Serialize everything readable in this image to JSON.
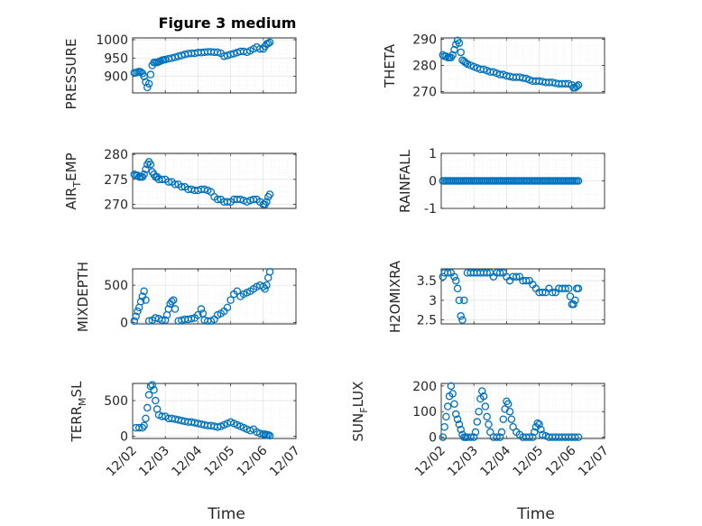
{
  "figure_title": "Figure 3 medium",
  "marker_color": "#0072bd",
  "x_tick_labels": [
    "12/02",
    "12/03",
    "12/04",
    "12/05",
    "12/06",
    "12/07"
  ],
  "chart_data": [
    {
      "type": "scatter",
      "title": "Figure 3 medium",
      "ylabel": "PRESSURE",
      "xlabel": "",
      "x_tick_labels": [
        "12/02",
        "12/03",
        "12/04",
        "12/05",
        "12/06",
        "12/07"
      ],
      "xlim": [
        0,
        5
      ],
      "ylim": [
        855,
        1005
      ],
      "yticks": [
        900,
        950,
        1000
      ],
      "grid": true,
      "x": [
        0.05,
        0.1,
        0.15,
        0.2,
        0.25,
        0.3,
        0.35,
        0.4,
        0.45,
        0.5,
        0.55,
        0.6,
        0.65,
        0.7,
        0.75,
        0.8,
        0.85,
        0.9,
        0.95,
        1.0,
        1.1,
        1.2,
        1.3,
        1.4,
        1.5,
        1.6,
        1.7,
        1.8,
        1.9,
        2.0,
        2.1,
        2.2,
        2.3,
        2.4,
        2.5,
        2.6,
        2.7,
        2.8,
        2.9,
        3.0,
        3.1,
        3.2,
        3.3,
        3.4,
        3.5,
        3.6,
        3.7,
        3.8,
        3.9,
        4.0,
        4.05,
        4.1,
        4.15,
        4.2
      ],
      "values": [
        910,
        910,
        912,
        913,
        912,
        908,
        900,
        885,
        870,
        880,
        905,
        930,
        938,
        938,
        938,
        940,
        942,
        944,
        945,
        946,
        948,
        950,
        952,
        955,
        957,
        960,
        962,
        963,
        963,
        965,
        965,
        966,
        967,
        967,
        966,
        966,
        963,
        955,
        957,
        960,
        962,
        965,
        968,
        968,
        966,
        970,
        975,
        980,
        975,
        975,
        982,
        988,
        990,
        993
      ]
    },
    {
      "type": "scatter",
      "ylabel": "THETA",
      "xlabel": "",
      "x_tick_labels": [
        "12/02",
        "12/03",
        "12/04",
        "12/05",
        "12/06",
        "12/07"
      ],
      "xlim": [
        0,
        5
      ],
      "ylim": [
        269.5,
        290.5
      ],
      "yticks": [
        270,
        280,
        290
      ],
      "grid": true,
      "x": [
        0.05,
        0.1,
        0.15,
        0.2,
        0.25,
        0.3,
        0.35,
        0.4,
        0.45,
        0.5,
        0.55,
        0.6,
        0.65,
        0.7,
        0.75,
        0.8,
        0.9,
        1.0,
        1.1,
        1.2,
        1.3,
        1.4,
        1.5,
        1.6,
        1.7,
        1.8,
        1.9,
        2.0,
        2.1,
        2.2,
        2.3,
        2.4,
        2.5,
        2.6,
        2.7,
        2.8,
        2.9,
        3.0,
        3.1,
        3.2,
        3.3,
        3.4,
        3.5,
        3.6,
        3.7,
        3.8,
        3.9,
        4.0,
        4.05,
        4.1,
        4.15,
        4.2
      ],
      "values": [
        284,
        283.5,
        283.5,
        283,
        283,
        283,
        284,
        286,
        288,
        289.5,
        288.5,
        285,
        282,
        281.5,
        281,
        280.5,
        280,
        279.5,
        279,
        278.5,
        278.5,
        278,
        277.5,
        277.5,
        277,
        276.5,
        276.5,
        276,
        275.8,
        275.5,
        275.5,
        275.5,
        275.2,
        275,
        274.5,
        274,
        274,
        274,
        273.8,
        273.5,
        273.5,
        273.5,
        273.2,
        273,
        273,
        273,
        273,
        272.5,
        271.5,
        271.5,
        272,
        272.5
      ]
    },
    {
      "type": "scatter",
      "ylabel": "AIR_TEMP",
      "xlabel": "",
      "x_tick_labels": [
        "12/02",
        "12/03",
        "12/04",
        "12/05",
        "12/06",
        "12/07"
      ],
      "xlim": [
        0,
        5
      ],
      "ylim": [
        269.2,
        280.2
      ],
      "yticks": [
        270,
        275,
        280
      ],
      "grid": true,
      "x": [
        0.05,
        0.1,
        0.15,
        0.2,
        0.25,
        0.3,
        0.35,
        0.4,
        0.45,
        0.5,
        0.55,
        0.6,
        0.65,
        0.7,
        0.75,
        0.8,
        0.9,
        1.0,
        1.1,
        1.2,
        1.3,
        1.4,
        1.5,
        1.6,
        1.7,
        1.8,
        1.9,
        2.0,
        2.1,
        2.2,
        2.3,
        2.4,
        2.5,
        2.6,
        2.7,
        2.8,
        2.9,
        3.0,
        3.1,
        3.2,
        3.3,
        3.4,
        3.5,
        3.6,
        3.7,
        3.8,
        3.9,
        4.0,
        4.05,
        4.1,
        4.15,
        4.2
      ],
      "values": [
        276,
        275.8,
        275.8,
        275.5,
        275.5,
        275.5,
        276,
        277,
        278,
        278.5,
        278,
        276.5,
        276,
        275.5,
        275.5,
        275,
        275,
        275,
        274.5,
        274.5,
        274,
        274,
        273.5,
        273.5,
        273,
        273,
        272.8,
        272.8,
        273,
        273,
        272.8,
        272.5,
        271.5,
        271,
        271,
        270.5,
        270.5,
        270.5,
        271,
        271,
        271,
        270.8,
        270.5,
        270.8,
        271,
        271,
        270.5,
        270,
        270,
        270.5,
        271.5,
        272
      ]
    },
    {
      "type": "scatter",
      "ylabel": "RAINFALL",
      "xlabel": "",
      "x_tick_labels": [
        "12/02",
        "12/03",
        "12/04",
        "12/05",
        "12/06",
        "12/07"
      ],
      "xlim": [
        0,
        5
      ],
      "ylim": [
        -1,
        1
      ],
      "yticks": [
        -1,
        0,
        1
      ],
      "grid": true,
      "x": [
        0.05,
        0.1,
        0.15,
        0.2,
        0.25,
        0.3,
        0.35,
        0.4,
        0.45,
        0.5,
        0.55,
        0.6,
        0.65,
        0.7,
        0.75,
        0.8,
        0.85,
        0.9,
        0.95,
        1.0,
        1.05,
        1.1,
        1.15,
        1.2,
        1.25,
        1.3,
        1.35,
        1.4,
        1.45,
        1.5,
        1.55,
        1.6,
        1.65,
        1.7,
        1.75,
        1.8,
        1.85,
        1.9,
        1.95,
        2.0,
        2.05,
        2.1,
        2.15,
        2.2,
        2.25,
        2.3,
        2.35,
        2.4,
        2.45,
        2.5,
        2.55,
        2.6,
        2.65,
        2.7,
        2.75,
        2.8,
        2.85,
        2.9,
        2.95,
        3.0,
        3.05,
        3.1,
        3.15,
        3.2,
        3.25,
        3.3,
        3.35,
        3.4,
        3.45,
        3.5,
        3.55,
        3.6,
        3.65,
        3.7,
        3.75,
        3.8,
        3.85,
        3.9,
        3.95,
        4.0,
        4.05,
        4.1,
        4.15,
        4.2
      ],
      "values": [
        0,
        0,
        0,
        0,
        0,
        0,
        0,
        0,
        0,
        0,
        0,
        0,
        0,
        0,
        0,
        0,
        0,
        0,
        0,
        0,
        0,
        0,
        0,
        0,
        0,
        0,
        0,
        0,
        0,
        0,
        0,
        0,
        0,
        0,
        0,
        0,
        0,
        0,
        0,
        0,
        0,
        0,
        0,
        0,
        0,
        0,
        0,
        0,
        0,
        0,
        0,
        0,
        0,
        0,
        0,
        0,
        0,
        0,
        0,
        0,
        0,
        0,
        0,
        0,
        0,
        0,
        0,
        0,
        0,
        0,
        0,
        0,
        0,
        0,
        0,
        0,
        0,
        0,
        0,
        0,
        0,
        0,
        0,
        0
      ]
    },
    {
      "type": "scatter",
      "ylabel": "MIXDEPTH",
      "xlabel": "",
      "x_tick_labels": [
        "12/02",
        "12/03",
        "12/04",
        "12/05",
        "12/06",
        "12/07"
      ],
      "xlim": [
        0,
        5
      ],
      "ylim": [
        -20,
        720
      ],
      "yticks": [
        0,
        500
      ],
      "grid": true,
      "x": [
        0.05,
        0.1,
        0.15,
        0.2,
        0.25,
        0.3,
        0.35,
        0.4,
        0.5,
        0.6,
        0.7,
        0.8,
        0.9,
        1.0,
        1.05,
        1.1,
        1.15,
        1.2,
        1.25,
        1.3,
        1.4,
        1.5,
        1.6,
        1.7,
        1.8,
        1.9,
        2.0,
        2.1,
        2.15,
        2.2,
        2.3,
        2.4,
        2.5,
        2.6,
        2.7,
        2.8,
        2.9,
        3.0,
        3.1,
        3.2,
        3.3,
        3.4,
        3.5,
        3.6,
        3.7,
        3.8,
        3.9,
        4.0,
        4.05,
        4.1,
        4.15,
        4.2
      ],
      "values": [
        20,
        80,
        150,
        200,
        280,
        350,
        420,
        300,
        20,
        30,
        60,
        50,
        30,
        30,
        100,
        180,
        250,
        280,
        300,
        180,
        20,
        30,
        40,
        40,
        50,
        60,
        100,
        180,
        120,
        30,
        20,
        20,
        40,
        100,
        120,
        150,
        200,
        300,
        380,
        420,
        350,
        380,
        400,
        420,
        450,
        480,
        500,
        480,
        450,
        500,
        600,
        680
      ]
    },
    {
      "type": "scatter",
      "ylabel": "H2OMIXRA",
      "xlabel": "",
      "x_tick_labels": [
        "12/02",
        "12/03",
        "12/04",
        "12/05",
        "12/06",
        "12/07"
      ],
      "xlim": [
        0,
        5
      ],
      "ylim": [
        2.4,
        3.8
      ],
      "yticks": [
        2.5,
        3,
        3.5
      ],
      "grid": true,
      "x": [
        0.05,
        0.1,
        0.2,
        0.3,
        0.4,
        0.45,
        0.5,
        0.55,
        0.6,
        0.65,
        0.7,
        0.8,
        0.9,
        1.0,
        1.1,
        1.2,
        1.3,
        1.4,
        1.5,
        1.6,
        1.7,
        1.8,
        1.9,
        2.0,
        2.1,
        2.2,
        2.3,
        2.4,
        2.5,
        2.6,
        2.7,
        2.8,
        2.9,
        3.0,
        3.1,
        3.2,
        3.3,
        3.4,
        3.5,
        3.6,
        3.7,
        3.8,
        3.9,
        3.95,
        4.0,
        4.05,
        4.1,
        4.15,
        4.2
      ],
      "values": [
        3.6,
        3.7,
        3.7,
        3.7,
        3.6,
        3.5,
        3.3,
        3.0,
        2.6,
        2.5,
        3.0,
        3.7,
        3.7,
        3.7,
        3.7,
        3.7,
        3.7,
        3.7,
        3.7,
        3.6,
        3.7,
        3.7,
        3.7,
        3.6,
        3.5,
        3.6,
        3.6,
        3.6,
        3.5,
        3.5,
        3.5,
        3.4,
        3.3,
        3.2,
        3.2,
        3.2,
        3.3,
        3.2,
        3.2,
        3.3,
        3.3,
        3.3,
        3.3,
        3.1,
        2.9,
        2.9,
        3.0,
        3.3,
        3.3
      ]
    },
    {
      "type": "scatter",
      "ylabel": "TERR_MSL",
      "xlabel": "Time",
      "x_tick_labels": [
        "12/02",
        "12/03",
        "12/04",
        "12/05",
        "12/06",
        "12/07"
      ],
      "xlim": [
        0,
        5
      ],
      "ylim": [
        -30,
        740
      ],
      "yticks": [
        0,
        500
      ],
      "grid": true,
      "x": [
        0.1,
        0.2,
        0.3,
        0.35,
        0.4,
        0.45,
        0.5,
        0.55,
        0.6,
        0.65,
        0.7,
        0.75,
        0.8,
        0.9,
        1.0,
        1.1,
        1.2,
        1.3,
        1.4,
        1.5,
        1.6,
        1.7,
        1.8,
        1.9,
        2.0,
        2.1,
        2.2,
        2.3,
        2.4,
        2.5,
        2.6,
        2.7,
        2.8,
        2.9,
        3.0,
        3.1,
        3.2,
        3.3,
        3.4,
        3.5,
        3.6,
        3.7,
        3.8,
        3.9,
        4.0,
        4.05,
        4.1,
        4.15,
        4.2
      ],
      "values": [
        120,
        120,
        120,
        150,
        250,
        400,
        580,
        700,
        720,
        650,
        500,
        380,
        300,
        280,
        280,
        250,
        250,
        240,
        230,
        220,
        210,
        200,
        200,
        190,
        180,
        170,
        160,
        150,
        150,
        140,
        130,
        140,
        160,
        180,
        200,
        180,
        160,
        140,
        120,
        100,
        80,
        100,
        60,
        40,
        30,
        30,
        20,
        20,
        10
      ]
    },
    {
      "type": "scatter",
      "ylabel": "SUN_FLUX",
      "xlabel": "Time",
      "x_tick_labels": [
        "12/02",
        "12/03",
        "12/04",
        "12/05",
        "12/06",
        "12/07"
      ],
      "xlim": [
        0,
        5
      ],
      "ylim": [
        -5,
        210
      ],
      "yticks": [
        0,
        100,
        200
      ],
      "grid": true,
      "x": [
        0.05,
        0.1,
        0.15,
        0.2,
        0.25,
        0.3,
        0.35,
        0.4,
        0.45,
        0.5,
        0.55,
        0.6,
        0.65,
        0.7,
        0.75,
        0.8,
        0.9,
        1.0,
        1.05,
        1.1,
        1.15,
        1.2,
        1.25,
        1.3,
        1.35,
        1.4,
        1.45,
        1.5,
        1.6,
        1.7,
        1.8,
        1.85,
        1.9,
        1.95,
        2.0,
        2.05,
        2.1,
        2.15,
        2.2,
        2.3,
        2.4,
        2.5,
        2.6,
        2.7,
        2.8,
        2.85,
        2.9,
        2.95,
        3.0,
        3.05,
        3.1,
        3.2,
        3.3,
        3.4,
        3.5,
        3.6,
        3.7,
        3.8,
        3.9,
        4.0,
        4.1,
        4.2
      ],
      "values": [
        0,
        40,
        80,
        120,
        160,
        200,
        170,
        130,
        90,
        70,
        50,
        30,
        10,
        0,
        0,
        0,
        0,
        0,
        20,
        60,
        100,
        150,
        180,
        160,
        120,
        80,
        50,
        20,
        0,
        0,
        0,
        20,
        70,
        110,
        140,
        130,
        100,
        70,
        40,
        20,
        10,
        0,
        0,
        0,
        0,
        20,
        40,
        55,
        50,
        30,
        10,
        5,
        0,
        0,
        0,
        0,
        0,
        0,
        0,
        0,
        0,
        0
      ]
    }
  ]
}
